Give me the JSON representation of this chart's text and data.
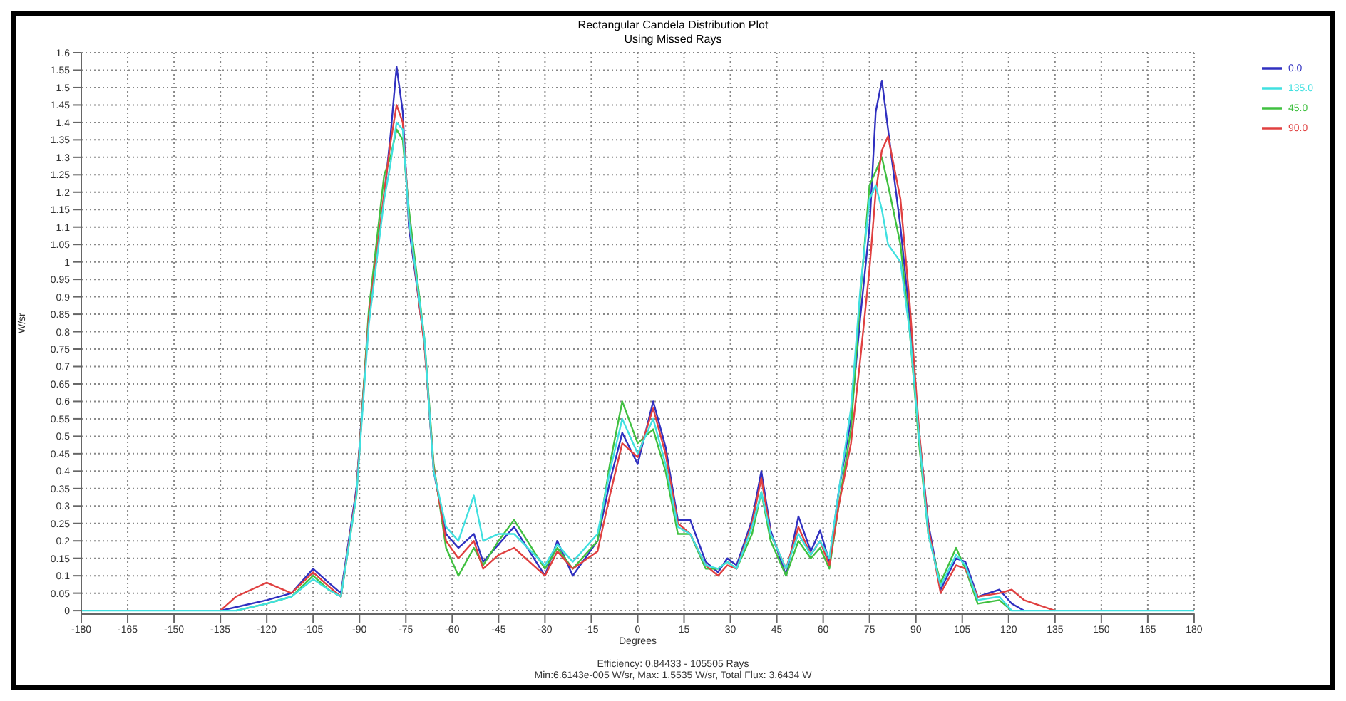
{
  "chart_data": {
    "type": "line",
    "title": "Rectangular Candela Distribution Plot",
    "subtitle": "Using Missed Rays",
    "xlabel": "Degrees",
    "ylabel": "W/sr",
    "annotations": [
      "Efficiency: 0.84433 - 105505 Rays",
      "Min:6.6143e-005 W/sr, Max: 1.5535 W/sr, Total Flux: 3.6434 W"
    ],
    "x": [
      -180,
      -150,
      -135,
      -130,
      -120,
      -112,
      -105,
      -100,
      -96,
      -91,
      -87,
      -82,
      -80,
      -78,
      -76,
      -74,
      -69,
      -66,
      -62,
      -58,
      -53,
      -50,
      -45,
      -40,
      -30,
      -26,
      -21,
      -13,
      -9,
      -5,
      0,
      5,
      9,
      13,
      17,
      22,
      26,
      29,
      32,
      37,
      40,
      43,
      48,
      52,
      56,
      59,
      62,
      65,
      69,
      72,
      75,
      77,
      79,
      81,
      85,
      88,
      91,
      94,
      98,
      103,
      106,
      110,
      117,
      121,
      125,
      135,
      180
    ],
    "series": [
      {
        "name": "0.0",
        "color": "#3030c0",
        "values": [
          null,
          null,
          0,
          0.01,
          0.03,
          0.05,
          0.12,
          0.08,
          0.05,
          0.35,
          0.84,
          1.19,
          1.36,
          1.56,
          1.43,
          1.1,
          0.77,
          0.4,
          0.22,
          0.18,
          0.22,
          0.14,
          0.19,
          0.24,
          0.1,
          0.2,
          0.1,
          0.2,
          0.37,
          0.51,
          0.42,
          0.6,
          0.47,
          0.26,
          0.26,
          0.14,
          0.11,
          0.15,
          0.13,
          0.26,
          0.4,
          0.23,
          0.1,
          0.27,
          0.17,
          0.23,
          0.14,
          0.34,
          0.55,
          0.84,
          1.1,
          1.43,
          1.52,
          1.38,
          1.1,
          0.84,
          0.51,
          0.25,
          0.06,
          0.15,
          0.14,
          0.04,
          0.06,
          0.02,
          0,
          null,
          null
        ]
      },
      {
        "name": "45.0",
        "color": "#40c040",
        "values": [
          null,
          null,
          null,
          0,
          0.02,
          0.04,
          0.1,
          0.06,
          0.04,
          0.33,
          0.86,
          1.25,
          1.3,
          1.38,
          1.35,
          1.15,
          0.78,
          0.42,
          0.18,
          0.1,
          0.18,
          0.13,
          0.2,
          0.26,
          0.12,
          0.18,
          0.12,
          0.2,
          0.42,
          0.6,
          0.48,
          0.52,
          0.4,
          0.22,
          0.22,
          0.12,
          0.12,
          0.14,
          0.12,
          0.22,
          0.34,
          0.2,
          0.1,
          0.2,
          0.15,
          0.18,
          0.12,
          0.3,
          0.52,
          0.9,
          1.22,
          1.26,
          1.3,
          1.22,
          1.05,
          0.8,
          0.48,
          0.22,
          0.08,
          0.18,
          0.12,
          0.02,
          0.03,
          0,
          null,
          null,
          null
        ]
      },
      {
        "name": "90.0",
        "color": "#e04040",
        "values": [
          null,
          null,
          0,
          0.04,
          0.08,
          0.05,
          0.11,
          0.07,
          0.04,
          0.34,
          0.84,
          1.2,
          1.34,
          1.45,
          1.4,
          1.12,
          0.76,
          0.41,
          0.2,
          0.15,
          0.2,
          0.12,
          0.16,
          0.18,
          0.1,
          0.17,
          0.12,
          0.17,
          0.33,
          0.48,
          0.44,
          0.58,
          0.45,
          0.25,
          0.22,
          0.13,
          0.1,
          0.13,
          0.12,
          0.25,
          0.38,
          0.22,
          0.12,
          0.24,
          0.16,
          0.2,
          0.13,
          0.3,
          0.48,
          0.72,
          0.98,
          1.2,
          1.32,
          1.36,
          1.18,
          0.88,
          0.52,
          0.24,
          0.05,
          0.13,
          0.12,
          0.04,
          0.05,
          0.06,
          0.03,
          0,
          null
        ]
      },
      {
        "name": "135.0",
        "color": "#40e0e0",
        "values": [
          0,
          0,
          0,
          0,
          0.02,
          0.04,
          0.09,
          0.06,
          0.04,
          0.33,
          0.82,
          1.18,
          1.28,
          1.4,
          1.38,
          1.12,
          0.78,
          0.4,
          0.24,
          0.2,
          0.33,
          0.2,
          0.22,
          0.22,
          0.13,
          0.19,
          0.14,
          0.22,
          0.4,
          0.55,
          0.45,
          0.55,
          0.42,
          0.24,
          0.22,
          0.13,
          0.12,
          0.14,
          0.12,
          0.24,
          0.34,
          0.22,
          0.12,
          0.22,
          0.16,
          0.2,
          0.15,
          0.34,
          0.58,
          0.92,
          1.18,
          1.22,
          1.15,
          1.05,
          1.0,
          0.8,
          0.5,
          0.22,
          0.07,
          0.16,
          0.13,
          0.03,
          0.04,
          0,
          0,
          0,
          0
        ]
      }
    ],
    "xlim": [
      -180,
      180
    ],
    "xticks": [
      -180,
      -165,
      -150,
      -135,
      -120,
      -105,
      -90,
      -75,
      -60,
      -45,
      -30,
      -15,
      0,
      15,
      30,
      45,
      60,
      75,
      90,
      105,
      120,
      135,
      150,
      165,
      180
    ],
    "ylim": [
      -0.01,
      1.6
    ],
    "yticks": [
      0,
      0.05,
      0.1,
      0.15,
      0.2,
      0.25,
      0.3,
      0.35,
      0.4,
      0.45,
      0.5,
      0.55,
      0.6,
      0.65,
      0.7,
      0.75,
      0.8,
      0.85,
      0.9,
      0.95,
      1,
      1.05,
      1.1,
      1.15,
      1.2,
      1.25,
      1.3,
      1.35,
      1.4,
      1.45,
      1.5,
      1.55,
      1.6
    ],
    "grid": true,
    "legend": "top right",
    "marker": "none",
    "line_style": "solid"
  }
}
